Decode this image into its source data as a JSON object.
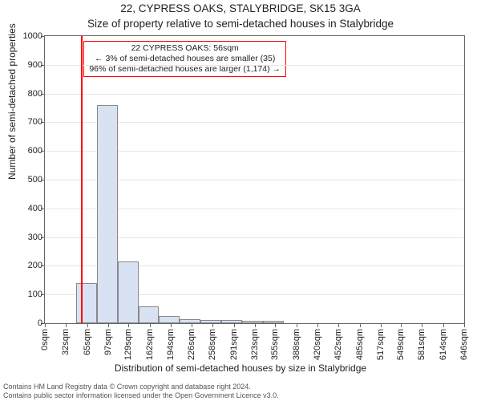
{
  "title_line1": "22, CYPRESS OAKS, STALYBRIDGE, SK15 3GA",
  "title_line2": "Size of property relative to semi-detached houses in Stalybridge",
  "xlabel": "Distribution of semi-detached houses by size in Stalybridge",
  "ylabel": "Number of semi-detached properties",
  "chart": {
    "ylim": [
      0,
      1000
    ],
    "yticks": [
      0,
      100,
      200,
      300,
      400,
      500,
      600,
      700,
      800,
      900,
      1000
    ],
    "xticks": [
      0,
      32,
      65,
      97,
      129,
      162,
      194,
      226,
      258,
      291,
      323,
      355,
      388,
      420,
      452,
      485,
      517,
      549,
      581,
      614,
      646
    ],
    "xtick_suffix": "sqm",
    "bars_x": [
      16,
      48,
      80,
      112,
      144,
      176,
      208,
      240,
      272,
      304,
      336
    ],
    "bars_y": [
      0,
      140,
      760,
      215,
      60,
      25,
      15,
      12,
      10,
      8,
      8
    ],
    "bar_width_sqm": 32,
    "bar_fill": "#d9e2f3",
    "bar_stroke": "#888888",
    "marker_x": 56,
    "marker_color": "#ff0000",
    "grid_color": "#e6e6e6",
    "background": "#ffffff",
    "axis_color": "#666666"
  },
  "annotation": {
    "line1": "22 CYPRESS OAKS: 56sqm",
    "line2": "← 3% of semi-detached houses are smaller (35)",
    "line3": "96% of semi-detached houses are larger (1,174) →",
    "border_color": "#ff0000"
  },
  "footer_line1": "Contains HM Land Registry data © Crown copyright and database right 2024.",
  "footer_line2": "Contains public sector information licensed under the Open Government Licence v3.0."
}
